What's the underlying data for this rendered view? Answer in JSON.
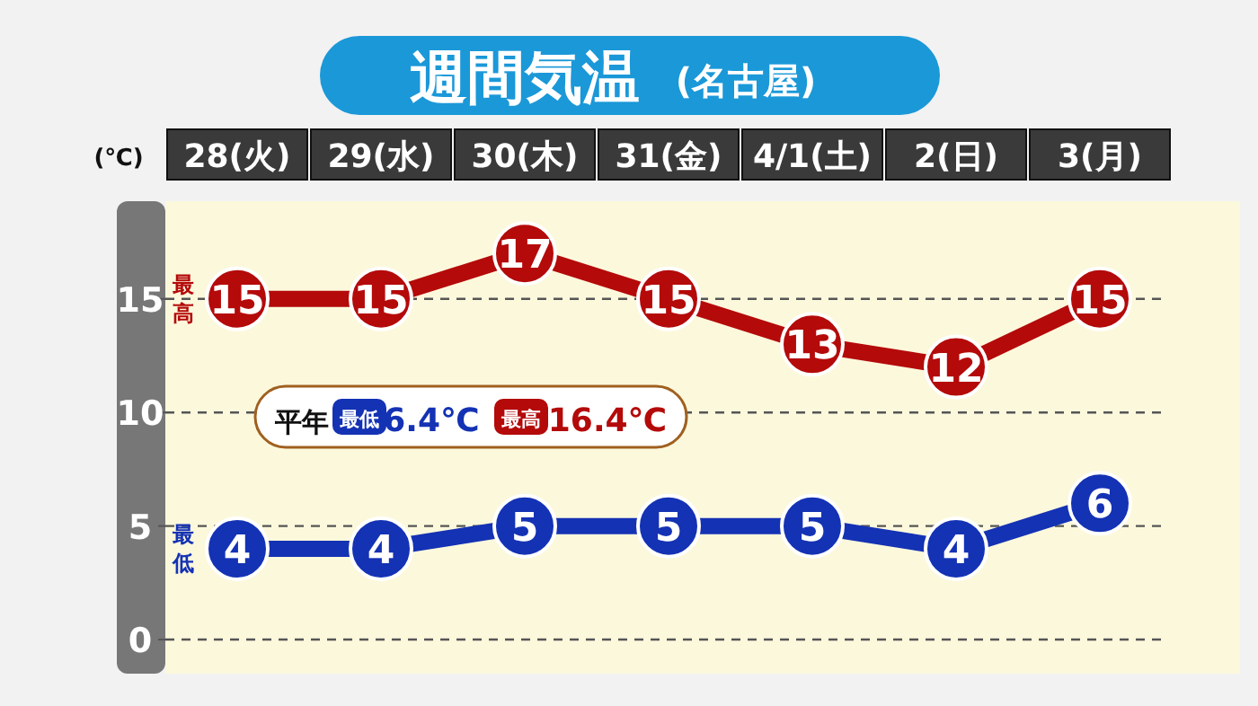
{
  "chart_data": {
    "type": "line",
    "title": "週間気温",
    "subtitle": "(名古屋)",
    "ylabel": "(℃)",
    "categories": [
      "28(火)",
      "29(水)",
      "30(木)",
      "31(金)",
      "4/1(土)",
      "2(日)",
      "3(月)"
    ],
    "series": [
      {
        "name": "最高",
        "color": "#b40a0a",
        "values": [
          15,
          15,
          17,
          15,
          13,
          12,
          15
        ]
      },
      {
        "name": "最低",
        "color": "#1432b4",
        "values": [
          4,
          4,
          5,
          5,
          5,
          4,
          6
        ]
      }
    ],
    "ylim": [
      -1.5,
      19.3
    ],
    "yticks": [
      0,
      5,
      10,
      15
    ],
    "grid": "y",
    "legend": false,
    "marker": "circle",
    "line_style": "solid",
    "data_labels": true,
    "annotations": [
      "平年",
      "最低",
      "6.4℃",
      "最高",
      "16.4℃"
    ]
  }
}
